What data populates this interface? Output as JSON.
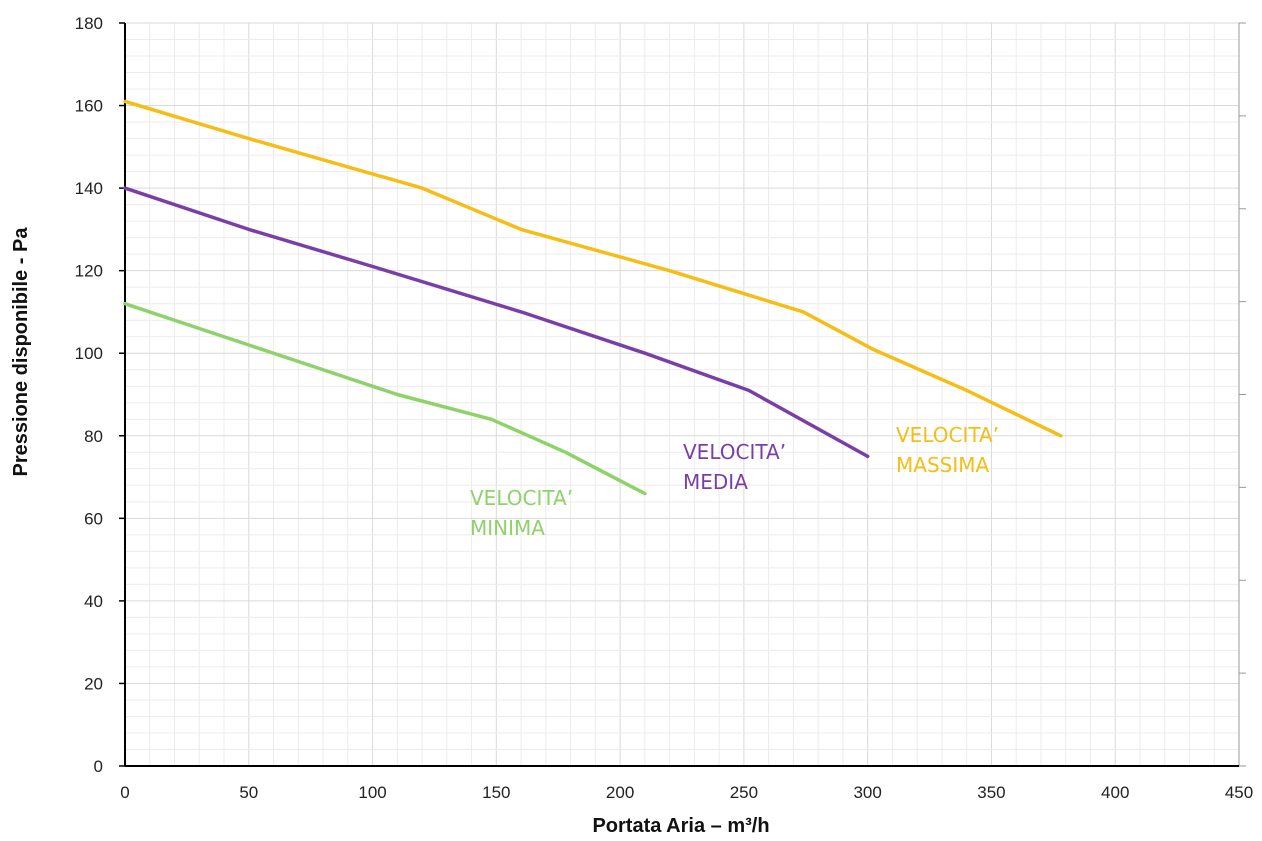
{
  "chart_data": {
    "type": "line",
    "xlabel": "Portata Aria – m³/h",
    "ylabel": "Pressione disponibile - Pa",
    "xlim": [
      0,
      450
    ],
    "ylim": [
      0,
      180
    ],
    "x_ticks": [
      "0",
      "50",
      "100",
      "150",
      "200",
      "250",
      "300",
      "350",
      "400",
      "450"
    ],
    "y_ticks": [
      "0",
      "20",
      "40",
      "60",
      "80",
      "100",
      "120",
      "140",
      "160",
      "180"
    ],
    "grid": true,
    "series": [
      {
        "name_lines": [
          "VELOCITA’",
          "MINIMA"
        ],
        "color": "#8ed26a",
        "points": [
          [
            0,
            112
          ],
          [
            35,
            105
          ],
          [
            70,
            98
          ],
          [
            110,
            90
          ],
          [
            148,
            84
          ],
          [
            178,
            76
          ],
          [
            210,
            66
          ]
        ]
      },
      {
        "name_lines": [
          "VELOCITA’",
          "MEDIA"
        ],
        "color": "#7a3fa6",
        "points": [
          [
            0,
            140
          ],
          [
            50,
            130
          ],
          [
            100,
            121
          ],
          [
            160,
            110
          ],
          [
            210,
            100
          ],
          [
            252,
            91
          ],
          [
            300,
            75
          ]
        ]
      },
      {
        "name_lines": [
          "VELOCITA’",
          "MASSIMA"
        ],
        "color": "#f6bd16",
        "points": [
          [
            0,
            161
          ],
          [
            50,
            152
          ],
          [
            120,
            140
          ],
          [
            160,
            130
          ],
          [
            220,
            120
          ],
          [
            274,
            110
          ],
          [
            302,
            101
          ],
          [
            340,
            91
          ],
          [
            378,
            80
          ]
        ]
      }
    ]
  }
}
